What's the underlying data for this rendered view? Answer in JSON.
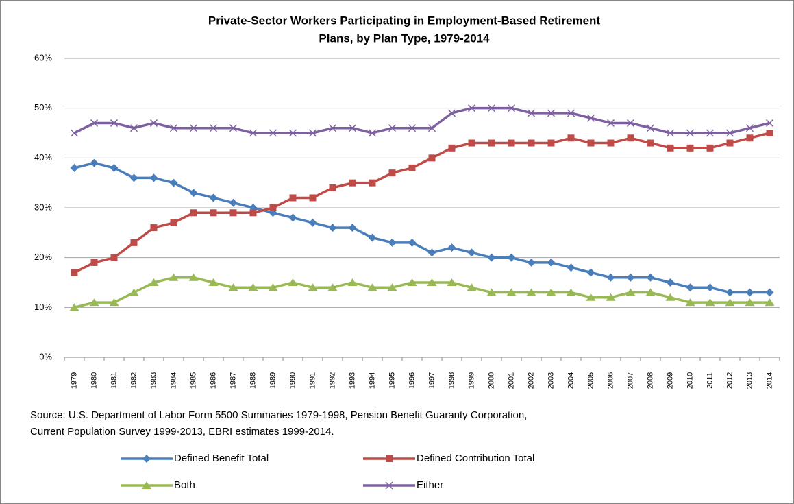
{
  "chart_data": {
    "type": "line",
    "title": [
      "Private-Sector Workers Participating in Employment-Based Retirement",
      "Plans, by Plan Type, 1979-2014"
    ],
    "source": [
      "Source: U.S. Department of Labor Form 5500 Summaries 1979-1998, Pension Benefit Guaranty Corporation,",
      "Current Population Survey 1999-2013,  EBRI estimates 1999-2014."
    ],
    "categories": [
      "1979",
      "1980",
      "1981",
      "1982",
      "1983",
      "1984",
      "1985",
      "1986",
      "1987",
      "1988",
      "1989",
      "1990",
      "1991",
      "1992",
      "1993",
      "1994",
      "1995",
      "1996",
      "1997",
      "1998",
      "1999",
      "2000",
      "2001",
      "2002",
      "2003",
      "2004",
      "2005",
      "2006",
      "2007",
      "2008",
      "2009",
      "2010",
      "2011",
      "2012",
      "2013",
      "2014"
    ],
    "series": [
      {
        "name": "Defined Benefit Total",
        "color": "#4a7ebb",
        "marker": "diamond",
        "values": [
          38,
          39,
          38,
          36,
          36,
          35,
          33,
          32,
          31,
          30,
          29,
          28,
          27,
          26,
          26,
          24,
          23,
          23,
          21,
          22,
          21,
          20,
          20,
          19,
          19,
          18,
          17,
          16,
          16,
          16,
          15,
          14,
          14,
          13,
          13,
          13
        ]
      },
      {
        "name": "Defined Contribution Total",
        "color": "#be4b48",
        "marker": "square",
        "values": [
          17,
          19,
          20,
          23,
          26,
          27,
          29,
          29,
          29,
          29,
          30,
          32,
          32,
          34,
          35,
          35,
          37,
          38,
          40,
          42,
          43,
          43,
          43,
          43,
          43,
          44,
          43,
          43,
          44,
          43,
          42,
          42,
          42,
          43,
          44,
          45
        ]
      },
      {
        "name": "Both",
        "color": "#98b954",
        "marker": "triangle",
        "values": [
          10,
          11,
          11,
          13,
          15,
          16,
          16,
          15,
          14,
          14,
          14,
          15,
          14,
          14,
          15,
          14,
          14,
          15,
          15,
          15,
          14,
          13,
          13,
          13,
          13,
          13,
          12,
          12,
          13,
          13,
          12,
          11,
          11,
          11,
          11,
          11
        ]
      },
      {
        "name": "Either",
        "color": "#7d60a0",
        "marker": "x",
        "values": [
          45,
          47,
          47,
          46,
          47,
          46,
          46,
          46,
          46,
          45,
          45,
          45,
          45,
          46,
          46,
          45,
          46,
          46,
          46,
          49,
          50,
          50,
          50,
          49,
          49,
          49,
          48,
          47,
          47,
          46,
          45,
          45,
          45,
          45,
          46,
          47
        ]
      }
    ],
    "ylim": [
      0,
      60
    ],
    "yticks": [
      {
        "value": 0,
        "label": "0%"
      },
      {
        "value": 10,
        "label": "10%"
      },
      {
        "value": 20,
        "label": "20%"
      },
      {
        "value": 30,
        "label": "30%"
      },
      {
        "value": 40,
        "label": "40%"
      },
      {
        "value": 50,
        "label": "50%"
      },
      {
        "value": 60,
        "label": "60%"
      }
    ],
    "grid": true
  }
}
